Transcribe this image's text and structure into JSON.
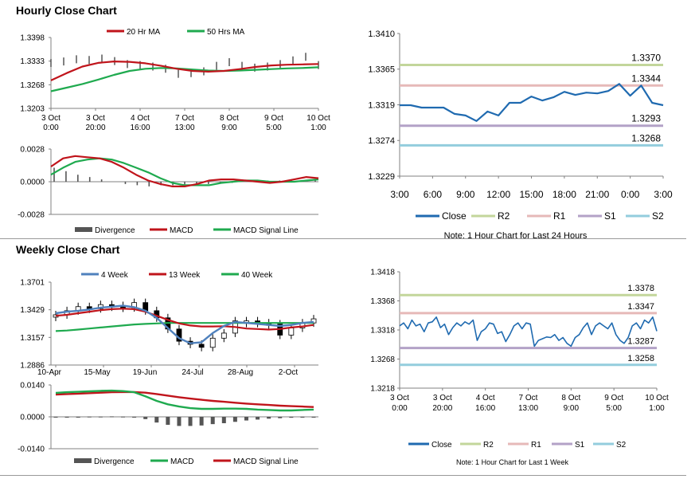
{
  "sections": {
    "hourly_title": "Hourly Close Chart",
    "weekly_title": "Weekly Close Chart"
  },
  "chart_data": [
    {
      "id": "hourly-price",
      "type": "line",
      "title": "Hourly Close Chart",
      "ylim": [
        1.3203,
        1.3398
      ],
      "y_ticks": [
        "1.3398",
        "1.3333",
        "1.3268",
        "1.3203"
      ],
      "x_ticks": [
        [
          "3 Oct",
          "0:00"
        ],
        [
          "3 Oct",
          "20:00"
        ],
        [
          "4 Oct",
          "16:00"
        ],
        [
          "7 Oct",
          "13:00"
        ],
        [
          "8 Oct",
          "9:00"
        ],
        [
          "9 Oct",
          "5:00"
        ],
        [
          "10 Oct",
          "1:00"
        ]
      ],
      "series": [
        {
          "name": "20 Hr MA",
          "color": "#c0141b",
          "values": [
            1.328,
            1.33,
            1.3318,
            1.3328,
            1.3332,
            1.3331,
            1.3327,
            1.332,
            1.3312,
            1.3306,
            1.3304,
            1.3306,
            1.3311,
            1.3317,
            1.3321,
            1.3323,
            1.3324,
            1.3325
          ]
        },
        {
          "name": "50 Hrs MA",
          "color": "#1faa4f",
          "values": [
            1.325,
            1.326,
            1.327,
            1.3282,
            1.3295,
            1.3306,
            1.3312,
            1.3314,
            1.3313,
            1.331,
            1.3307,
            1.3306,
            1.3307,
            1.3309,
            1.3311,
            1.3313,
            1.3314,
            1.3316
          ]
        },
        {
          "name": "Close",
          "color": "#000000",
          "values": [
            1.3328,
            1.3332,
            1.3338,
            1.3336,
            1.334,
            1.3333,
            1.3325,
            1.3322,
            1.3318,
            1.3312,
            1.3298,
            1.33,
            1.3305,
            1.332,
            1.333,
            1.332,
            1.3315,
            1.3318,
            1.3325,
            1.3335,
            1.3345,
            1.3322
          ]
        }
      ]
    },
    {
      "id": "hourly-macd",
      "type": "line",
      "ylim": [
        -0.0028,
        0.0028
      ],
      "y_ticks": [
        "0.0028",
        "0.0000",
        "-0.0028"
      ],
      "series": [
        {
          "name": "Divergence",
          "color": "#555555",
          "values": [
            0.0012,
            0.0009,
            0.0006,
            0.0004,
            0.0002,
            0.0,
            -0.0002,
            -0.0003,
            -0.0004,
            -0.0003,
            -0.0003,
            -0.0003,
            -0.0002,
            -0.0002,
            -0.0001,
            -0.0001,
            0.0,
            0.0,
            0.0001,
            0.0001,
            0.0001,
            0.0001,
            0.0001
          ]
        },
        {
          "name": "MACD",
          "color": "#c0141b",
          "values": [
            0.0013,
            0.002,
            0.0022,
            0.0021,
            0.002,
            0.0017,
            0.0012,
            0.0006,
            0.0001,
            -0.0002,
            -0.0004,
            -0.0004,
            -0.0002,
            0.0001,
            0.0002,
            0.0002,
            0.0001,
            0.0,
            -0.0001,
            0.0,
            0.0002,
            0.0004,
            0.0003
          ]
        },
        {
          "name": "MACD Signal Line",
          "color": "#1faa4f",
          "values": [
            0.0006,
            0.0012,
            0.0017,
            0.0019,
            0.002,
            0.0019,
            0.0016,
            0.0012,
            0.0008,
            0.0003,
            -0.0001,
            -0.0003,
            -0.0003,
            -0.0003,
            -0.0001,
            0.0,
            0.0001,
            0.0001,
            0.0,
            0.0,
            0.0,
            0.0001,
            0.0002
          ]
        }
      ]
    },
    {
      "id": "hourly-pivot",
      "type": "line",
      "ylim": [
        1.3229,
        1.341
      ],
      "y_ticks": [
        "1.3410",
        "1.3365",
        "1.3319",
        "1.3274",
        "1.3229"
      ],
      "x_ticks": [
        "3:00",
        "6:00",
        "9:00",
        "12:00",
        "15:00",
        "18:00",
        "21:00",
        "0:00",
        "3:00"
      ],
      "note": "Note: 1 Hour Chart for Last 24 Hours",
      "levels": [
        {
          "name": "R2",
          "value": 1.337,
          "label": "1.3370",
          "color": "#c3d69b"
        },
        {
          "name": "R1",
          "value": 1.3344,
          "label": "1.3344",
          "color": "#e6b9b8"
        },
        {
          "name": "S1",
          "value": 1.3293,
          "label": "1.3293",
          "color": "#b3a2c7"
        },
        {
          "name": "S2",
          "value": 1.3268,
          "label": "1.3268",
          "color": "#93cddd"
        }
      ],
      "close": {
        "name": "Close",
        "color": "#1f6ab0",
        "values": [
          1.3319,
          1.3319,
          1.3316,
          1.3316,
          1.3316,
          1.3308,
          1.3306,
          1.3299,
          1.3311,
          1.3306,
          1.3322,
          1.3322,
          1.333,
          1.3325,
          1.3329,
          1.3336,
          1.3332,
          1.3335,
          1.3334,
          1.3337,
          1.3346,
          1.3331,
          1.3344,
          1.3322,
          1.3319
        ]
      },
      "legend": [
        "Close",
        "R2",
        "R1",
        "S1",
        "S2"
      ]
    },
    {
      "id": "weekly-price",
      "type": "line",
      "title": "Weekly Close Chart",
      "ylim": [
        1.2886,
        1.3701
      ],
      "y_ticks": [
        "1.3701",
        "1.3429",
        "1.3157",
        "1.2886"
      ],
      "x_ticks": [
        "10-Apr",
        "15-May",
        "19-Jun",
        "24-Jul",
        "28-Aug",
        "2-Oct"
      ],
      "series": [
        {
          "name": "4 Week",
          "color": "#4f81bd",
          "values": [
            1.3395,
            1.341,
            1.342,
            1.3432,
            1.345,
            1.346,
            1.347,
            1.3455,
            1.342,
            1.335,
            1.325,
            1.315,
            1.31,
            1.311,
            1.32,
            1.327,
            1.331,
            1.33,
            1.329,
            1.328,
            1.327,
            1.328,
            1.33,
            1.331
          ]
        },
        {
          "name": "13 Week",
          "color": "#c0141b",
          "values": [
            1.337,
            1.338,
            1.3395,
            1.341,
            1.3425,
            1.3435,
            1.344,
            1.3435,
            1.341,
            1.337,
            1.333,
            1.3295,
            1.3275,
            1.3265,
            1.3265,
            1.3268,
            1.326,
            1.3245,
            1.324,
            1.3235,
            1.324,
            1.3255,
            1.3265,
            1.328
          ]
        },
        {
          "name": "40 Week",
          "color": "#1faa4f",
          "values": [
            1.322,
            1.3225,
            1.3235,
            1.3245,
            1.3255,
            1.3265,
            1.3275,
            1.3285,
            1.329,
            1.3295,
            1.33,
            1.33,
            1.33,
            1.33,
            1.33,
            1.33,
            1.33,
            1.33,
            1.33,
            1.33,
            1.33,
            1.33,
            1.33,
            1.33
          ]
        },
        {
          "name": "Candles",
          "color": "#000000",
          "values": [
            1.338,
            1.342,
            1.346,
            1.344,
            1.348,
            1.347,
            1.345,
            1.35,
            1.342,
            1.335,
            1.324,
            1.312,
            1.309,
            1.306,
            1.315,
            1.32,
            1.332,
            1.332,
            1.33,
            1.329,
            1.318,
            1.325,
            1.33,
            1.334
          ]
        }
      ]
    },
    {
      "id": "weekly-macd",
      "type": "line",
      "ylim": [
        -0.014,
        0.014
      ],
      "y_ticks": [
        "0.0140",
        "0.0000",
        "-0.0140"
      ],
      "series": [
        {
          "name": "Divergence",
          "color": "#555555",
          "values": [
            -0.0002,
            -0.0001,
            0.0,
            0.0001,
            0.0001,
            0.0002,
            0.0001,
            0.0,
            -0.001,
            -0.0025,
            -0.0035,
            -0.004,
            -0.004,
            -0.0038,
            -0.0032,
            -0.0028,
            -0.0022,
            -0.0016,
            -0.0012,
            -0.0008,
            -0.0006,
            -0.0004,
            -0.0002,
            -0.0001
          ]
        },
        {
          "name": "MACD",
          "color": "#1faa4f",
          "values": [
            0.0105,
            0.0108,
            0.011,
            0.0112,
            0.0114,
            0.0115,
            0.0113,
            0.0108,
            0.009,
            0.007,
            0.0055,
            0.0045,
            0.0038,
            0.0035,
            0.0035,
            0.0036,
            0.0036,
            0.0035,
            0.0032,
            0.003,
            0.0028,
            0.0028,
            0.003,
            0.0032
          ]
        },
        {
          "name": "MACD Signal Line",
          "color": "#c0141b",
          "values": [
            0.0098,
            0.01,
            0.0102,
            0.0104,
            0.0106,
            0.0108,
            0.0109,
            0.0109,
            0.0106,
            0.01,
            0.0093,
            0.0086,
            0.008,
            0.0075,
            0.007,
            0.0066,
            0.0062,
            0.0058,
            0.0055,
            0.0052,
            0.0049,
            0.0047,
            0.0045,
            0.0043
          ]
        }
      ]
    },
    {
      "id": "weekly-pivot",
      "type": "line",
      "ylim": [
        1.3218,
        1.3418
      ],
      "y_ticks": [
        "1.3418",
        "1.3368",
        "1.3318",
        "1.3268",
        "1.3218"
      ],
      "x_ticks": [
        [
          "3 Oct",
          "0:00"
        ],
        [
          "3 Oct",
          "20:00"
        ],
        [
          "4 Oct",
          "16:00"
        ],
        [
          "7 Oct",
          "13:00"
        ],
        [
          "8 Oct",
          "9:00"
        ],
        [
          "9 Oct",
          "5:00"
        ],
        [
          "10 Oct",
          "1:00"
        ]
      ],
      "note": "Note: 1 Hour Chart for Last 1 Week",
      "levels": [
        {
          "name": "R2",
          "value": 1.3378,
          "label": "1.3378",
          "color": "#c3d69b"
        },
        {
          "name": "R1",
          "value": 1.3347,
          "label": "1.3347",
          "color": "#e6b9b8"
        },
        {
          "name": "S1",
          "value": 1.3287,
          "label": "1.3287",
          "color": "#b3a2c7"
        },
        {
          "name": "S2",
          "value": 1.3258,
          "label": "1.3258",
          "color": "#93cddd"
        }
      ],
      "close": {
        "name": "Close",
        "color": "#1f6ab0",
        "values": [
          1.3325,
          1.333,
          1.332,
          1.3335,
          1.3325,
          1.3328,
          1.3315,
          1.333,
          1.3332,
          1.334,
          1.3322,
          1.3328,
          1.331,
          1.3322,
          1.333,
          1.3325,
          1.3332,
          1.3328,
          1.3335,
          1.33,
          1.3315,
          1.332,
          1.333,
          1.3328,
          1.3312,
          1.3315,
          1.3298,
          1.331,
          1.3325,
          1.333,
          1.332,
          1.333,
          1.3328,
          1.329,
          1.33,
          1.3303,
          1.3306,
          1.3305,
          1.331,
          1.33,
          1.3305,
          1.3295,
          1.329,
          1.3305,
          1.331,
          1.3322,
          1.333,
          1.331,
          1.3325,
          1.333,
          1.3325,
          1.332,
          1.333,
          1.331,
          1.33,
          1.3295,
          1.3305,
          1.3325,
          1.333,
          1.332,
          1.3335,
          1.333,
          1.334,
          1.3316
        ]
      },
      "legend": [
        "Close",
        "R2",
        "R1",
        "S1",
        "S2"
      ]
    }
  ]
}
